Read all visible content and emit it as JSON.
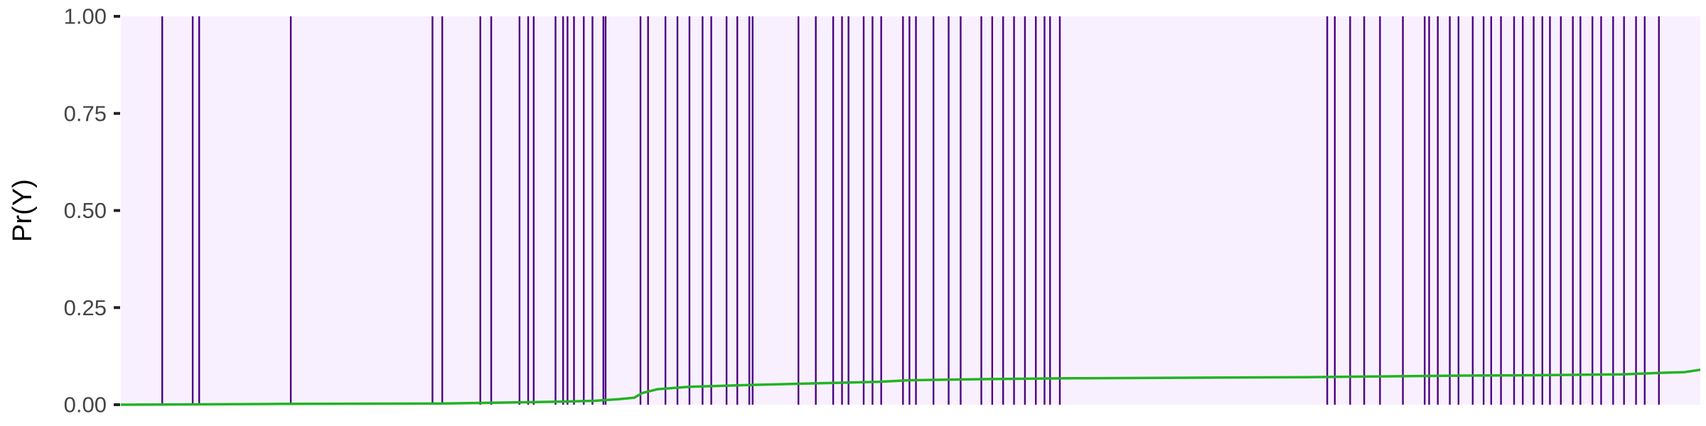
{
  "chart_data": {
    "type": "line",
    "title": "",
    "xlabel": "",
    "ylabel": "Pr(Y)",
    "ylim": [
      0,
      1
    ],
    "xlim": [
      0,
      1
    ],
    "yticks": [
      "0.00",
      "0.25",
      "0.50",
      "0.75",
      "1.00"
    ],
    "ytick_values": [
      0,
      0.25,
      0.5,
      0.75,
      1
    ],
    "grid": false,
    "legend": "none",
    "colors": {
      "panel_background": "#f9f0ff",
      "event_lines": "#4b0082",
      "probability_line": "#22b322",
      "tick_text": "#444444",
      "axis_title": "#000000"
    },
    "event_lines": {
      "description_value_units": "fraction of x range",
      "x": [
        0.0262,
        0.0455,
        0.0496,
        0.1076,
        0.1973,
        0.2035,
        0.2276,
        0.2345,
        0.2524,
        0.2579,
        0.2614,
        0.2752,
        0.28,
        0.2828,
        0.2869,
        0.2931,
        0.2986,
        0.3055,
        0.3069,
        0.329,
        0.3338,
        0.3448,
        0.3524,
        0.36,
        0.3683,
        0.3738,
        0.3835,
        0.3903,
        0.3979,
        0.4,
        0.429,
        0.44,
        0.451,
        0.4566,
        0.4607,
        0.4703,
        0.4759,
        0.4814,
        0.4952,
        0.4993,
        0.5034,
        0.5145,
        0.5241,
        0.5317,
        0.5448,
        0.5517,
        0.5586,
        0.5655,
        0.5724,
        0.5793,
        0.5848,
        0.5883,
        0.5945,
        0.7638,
        0.7686,
        0.7783,
        0.7872,
        0.7972,
        0.8117,
        0.8255,
        0.8283,
        0.8338,
        0.8414,
        0.8469,
        0.8559,
        0.8628,
        0.8676,
        0.8738,
        0.8821,
        0.8876,
        0.8945,
        0.9,
        0.9048,
        0.9117,
        0.9193,
        0.9241,
        0.9317,
        0.9372,
        0.9448,
        0.9517,
        0.9593,
        0.9648,
        0.9738
      ]
    },
    "series": [
      {
        "values_x": [
          0.0,
          0.1,
          0.2,
          0.25,
          0.28,
          0.3,
          0.315,
          0.325,
          0.33,
          0.34,
          0.36,
          0.4,
          0.45,
          0.48,
          0.5,
          0.55,
          0.6,
          0.7,
          0.75,
          0.8,
          0.85,
          0.9,
          0.95,
          0.975,
          0.99,
          1.0
        ],
        "values_y": [
          0.0,
          0.002,
          0.003,
          0.006,
          0.008,
          0.01,
          0.014,
          0.018,
          0.03,
          0.04,
          0.046,
          0.051,
          0.056,
          0.059,
          0.063,
          0.066,
          0.068,
          0.07,
          0.071,
          0.073,
          0.075,
          0.076,
          0.078,
          0.082,
          0.084,
          0.09
        ]
      }
    ]
  }
}
